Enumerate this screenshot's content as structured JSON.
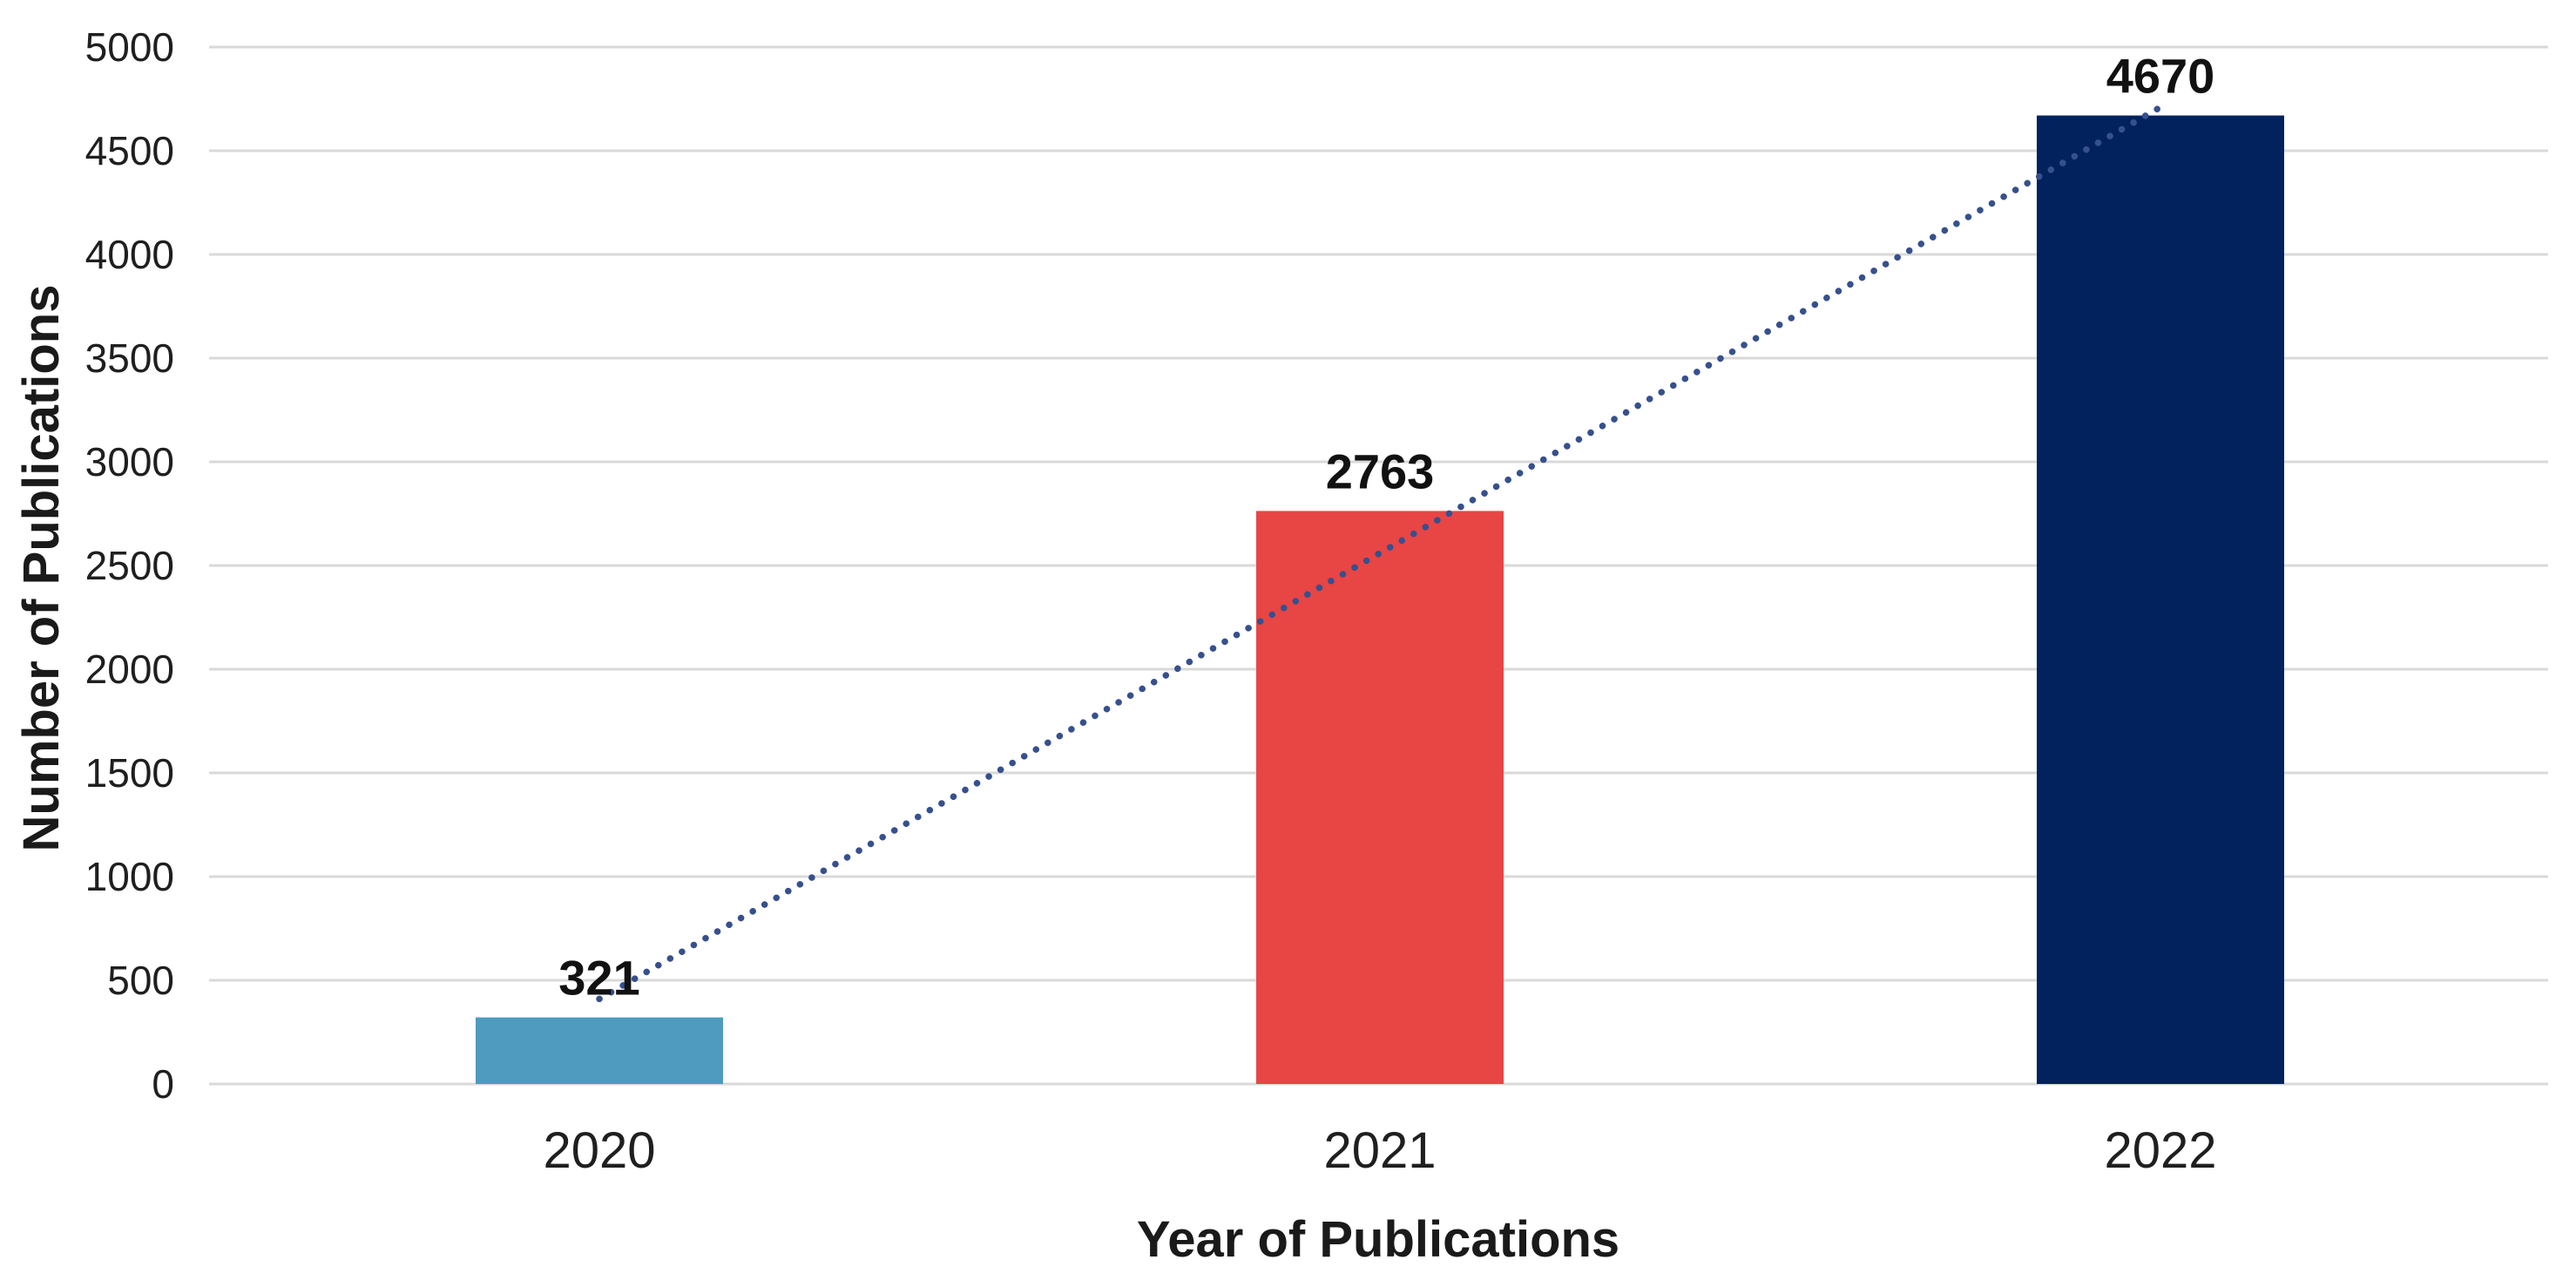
{
  "chart_data": {
    "type": "bar",
    "title": "",
    "categories": [
      "2020",
      "2021",
      "2022"
    ],
    "values": [
      321,
      2763,
      4670
    ],
    "data_labels": [
      "321",
      "2763",
      "4670"
    ],
    "bar_colors": [
      "#4E9BBF",
      "#E84545",
      "#02225E"
    ],
    "xlabel": "Year of Publications",
    "ylabel": "Number of Publications",
    "ylim": [
      0,
      5000
    ],
    "yticks": [
      0,
      500,
      1000,
      1500,
      2000,
      2500,
      3000,
      3500,
      4000,
      4500,
      5000
    ],
    "grid": "horizontal-only",
    "gridline_color": "#D9D9D9",
    "tick_text_color": "#1f1f1f",
    "label_text_color": "#111111",
    "legend": "none",
    "background_color": "#FFFFFF",
    "trendline": {
      "type": "linear",
      "style": "dotted",
      "color": "#36508E",
      "start": {
        "category": "2020",
        "value": 410
      },
      "end": {
        "category": "2022",
        "value": 4710
      }
    }
  }
}
